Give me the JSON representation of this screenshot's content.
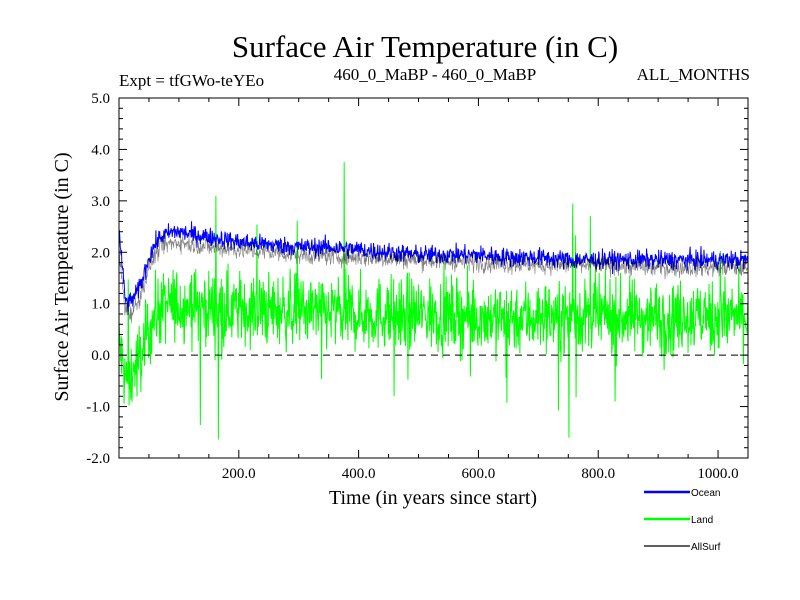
{
  "chart_data": {
    "type": "line",
    "title": "Surface Air Temperature (in C)",
    "subtitle_left": "Expt = tfGWo-teYEo",
    "subtitle_center": "460_0_MaBP - 460_0_MaBP",
    "subtitle_right": "ALL_MONTHS",
    "xlabel": "Time (in years since start)",
    "ylabel": "Surface Air Temperature (in C)",
    "xlim": [
      0,
      1050
    ],
    "ylim": [
      -2.0,
      5.0
    ],
    "x_ticks": [
      {
        "value": 200,
        "label": "200.0"
      },
      {
        "value": 400,
        "label": "400.0"
      },
      {
        "value": 600,
        "label": "600.0"
      },
      {
        "value": 800,
        "label": "800.0"
      },
      {
        "value": 1000,
        "label": "1000.0"
      }
    ],
    "y_ticks": [
      {
        "value": 5.0,
        "label": "5.0"
      },
      {
        "value": 4.0,
        "label": "4.0"
      },
      {
        "value": 3.0,
        "label": "3.0"
      },
      {
        "value": 2.0,
        "label": "2.0"
      },
      {
        "value": 1.0,
        "label": "1.0"
      },
      {
        "value": 0.0,
        "label": "0.0"
      },
      {
        "value": -1.0,
        "label": "-1.0"
      },
      {
        "value": -2.0,
        "label": "-2.0"
      }
    ],
    "zero_line": 0.0,
    "legend_position": "bottom-right",
    "series": [
      {
        "name": "Ocean",
        "color": "#0000ff",
        "x": [
          0,
          5,
          10,
          15,
          20,
          30,
          40,
          50,
          60,
          70,
          80,
          90,
          100,
          120,
          150,
          200,
          250,
          300,
          350,
          400,
          450,
          500,
          550,
          600,
          650,
          700,
          750,
          800,
          850,
          900,
          950,
          1000,
          1050
        ],
        "values": [
          2.4,
          1.8,
          1.1,
          1.0,
          1.05,
          1.2,
          1.5,
          1.9,
          2.15,
          2.3,
          2.35,
          2.4,
          2.4,
          2.35,
          2.3,
          2.2,
          2.15,
          2.1,
          2.1,
          2.05,
          2.0,
          1.95,
          1.95,
          1.95,
          1.9,
          1.9,
          1.85,
          1.85,
          1.85,
          1.85,
          1.85,
          1.85,
          1.85
        ],
        "noise": 0.18
      },
      {
        "name": "Land",
        "color": "#00ff00",
        "x": [
          0,
          10,
          20,
          30,
          40,
          50,
          60,
          70,
          80,
          100,
          150,
          200,
          300,
          400,
          500,
          600,
          700,
          800,
          900,
          1000,
          1050
        ],
        "values": [
          0.3,
          -0.5,
          -0.4,
          -0.2,
          0.1,
          0.5,
          0.8,
          0.9,
          0.95,
          1.0,
          0.95,
          0.9,
          0.85,
          0.8,
          0.8,
          0.75,
          0.75,
          0.75,
          0.75,
          0.75,
          0.75
        ],
        "noise": 0.7,
        "spike_max": 4.1,
        "spike_min": -1.9
      },
      {
        "name": "AllSurf",
        "color": "#000000",
        "x": [
          0,
          10,
          20,
          30,
          40,
          50,
          60,
          70,
          80,
          100,
          150,
          200,
          300,
          400,
          500,
          600,
          700,
          800,
          900,
          1000,
          1050
        ],
        "values": [
          2.0,
          0.9,
          0.8,
          1.0,
          1.3,
          1.7,
          1.95,
          2.1,
          2.15,
          2.2,
          2.1,
          2.05,
          1.95,
          1.9,
          1.85,
          1.8,
          1.75,
          1.75,
          1.7,
          1.7,
          1.7
        ],
        "noise": 0.18
      }
    ]
  }
}
